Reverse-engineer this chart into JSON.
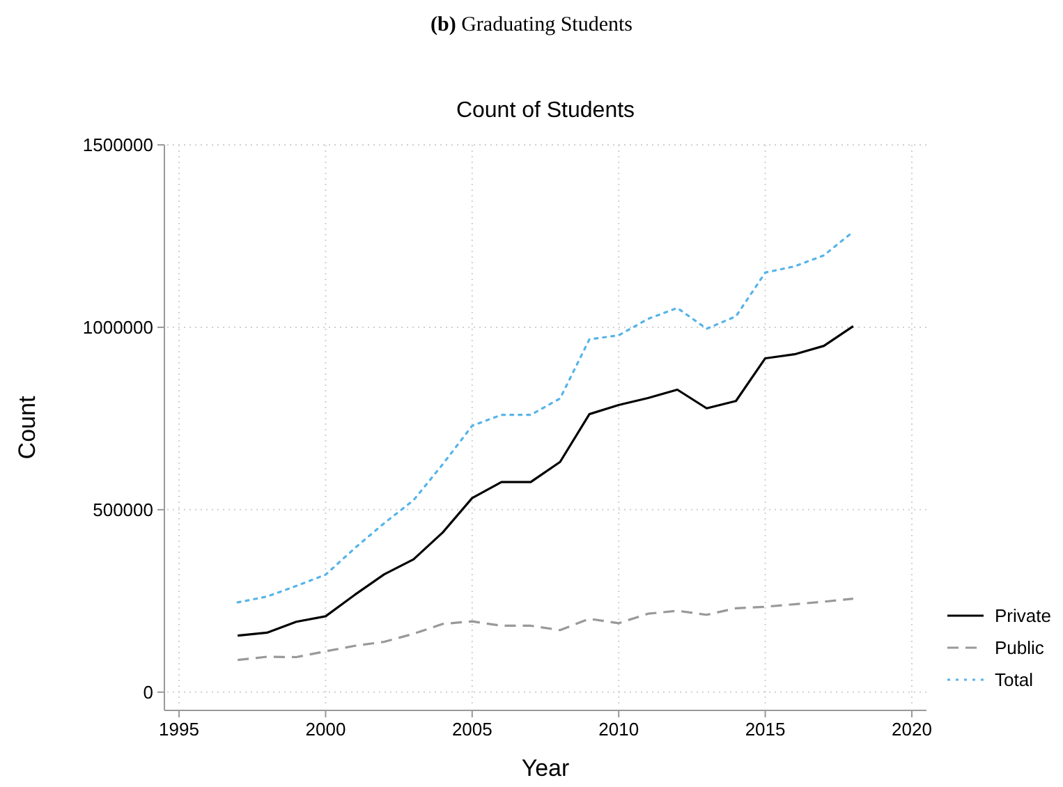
{
  "chart_data": {
    "type": "line",
    "title": "Count of Students",
    "xlabel": "Year",
    "ylabel": "Count",
    "annotations": [
      "(b) Graduating Students"
    ],
    "x": [
      1997,
      1998,
      1999,
      2000,
      2001,
      2002,
      2003,
      2004,
      2005,
      2006,
      2007,
      2008,
      2009,
      2010,
      2011,
      2012,
      2013,
      2014,
      2015,
      2016,
      2017,
      2018
    ],
    "series": [
      {
        "name": "Private",
        "color": "#000000",
        "line_style": "solid",
        "values": [
          155000,
          163000,
          193000,
          208000,
          267000,
          323000,
          364000,
          438000,
          532000,
          576000,
          576000,
          631000,
          762000,
          787000,
          806000,
          829000,
          778000,
          798000,
          915000,
          926000,
          949000,
          1003000
        ]
      },
      {
        "name": "Public",
        "color": "#999999",
        "line_style": "dashed",
        "values": [
          88000,
          97000,
          96000,
          112000,
          127000,
          138000,
          160000,
          187000,
          194000,
          182000,
          182000,
          170000,
          201000,
          189000,
          215000,
          223000,
          212000,
          230000,
          234000,
          241000,
          248000,
          256000
        ]
      },
      {
        "name": "Total",
        "color": "#56b4e9",
        "line_style": "dotted",
        "values": [
          246000,
          262000,
          291000,
          322000,
          395000,
          463000,
          526000,
          625000,
          730000,
          760000,
          760000,
          805000,
          967000,
          978000,
          1023000,
          1053000,
          996000,
          1030000,
          1150000,
          1167000,
          1197000,
          1262000
        ]
      }
    ],
    "xlim": [
      1994.5,
      2020.5
    ],
    "ylim": [
      -50000,
      1500000
    ],
    "xticks": [
      1995,
      2000,
      2005,
      2010,
      2015,
      2020
    ],
    "yticks": [
      0,
      500000,
      1000000,
      1500000
    ],
    "grid": true,
    "legend": "right"
  }
}
